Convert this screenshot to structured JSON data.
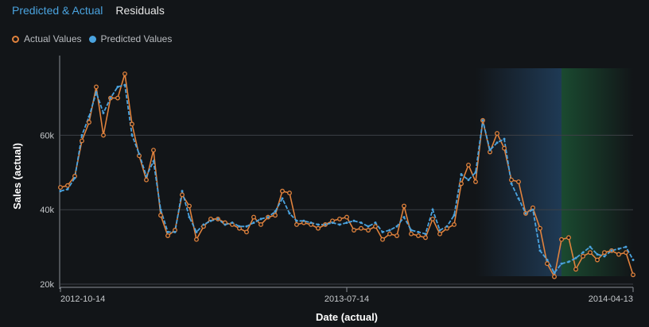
{
  "tabs": [
    {
      "label": "Predicted & Actual",
      "active": true
    },
    {
      "label": "Residuals",
      "active": false
    }
  ],
  "legend": {
    "actual_label": "Actual Values",
    "predicted_label": "Predicted Values"
  },
  "colors": {
    "actual": "#e0823d",
    "predicted": "#4aa3df",
    "active_tab": "#4aa3df",
    "background": "#121518",
    "grid": "#3c4046",
    "backtest_band": "#1f3a55",
    "holdout_band": "#1a4a30"
  },
  "chart_data": {
    "type": "line",
    "xlabel": "Date (actual)",
    "ylabel": "Sales (actual)",
    "x_ticks": [
      "2012-10-14",
      "2013-07-14",
      "2014-04-13"
    ],
    "y_ticks": [
      "20k",
      "40k",
      "60k"
    ],
    "ylim": [
      20000,
      78000
    ],
    "x_index_range": [
      0,
      80
    ],
    "grid": "horizontal",
    "highlight_regions": [
      {
        "name": "backtest",
        "from_index": 58,
        "to_index": 70
      },
      {
        "name": "holdout",
        "from_index": 70,
        "to_index": 80
      }
    ],
    "series": [
      {
        "name": "Actual Values",
        "values": [
          46000,
          46500,
          49000,
          58500,
          63500,
          73000,
          60000,
          70000,
          70000,
          76500,
          63000,
          54500,
          48000,
          56000,
          38500,
          33000,
          34500,
          44000,
          41000,
          32000,
          35500,
          37500,
          37500,
          36500,
          36000,
          35000,
          34000,
          38000,
          36000,
          38000,
          38500,
          45000,
          44500,
          36000,
          36500,
          36000,
          35000,
          36000,
          37000,
          37500,
          38000,
          34500,
          35000,
          34500,
          35500,
          32000,
          33500,
          33000,
          41000,
          33500,
          33000,
          32500,
          37500,
          33500,
          35000,
          36000,
          47000,
          52000,
          47500,
          64000,
          55500,
          60500,
          56500,
          48000,
          47500,
          39000,
          40500,
          35000,
          25500,
          22000,
          32000,
          32500,
          24000,
          27500,
          28500,
          26500,
          28500,
          29000,
          28000,
          28500,
          22500
        ],
        "values_note": "sampled approx. daily points read from chart"
      },
      {
        "name": "Predicted Values",
        "values": [
          45000,
          45500,
          48500,
          60000,
          65000,
          71500,
          66000,
          70000,
          73000,
          73500,
          60000,
          55000,
          49000,
          53000,
          40000,
          34000,
          34000,
          45000,
          38000,
          34000,
          36000,
          37000,
          37500,
          36000,
          36500,
          35500,
          35500,
          36500,
          37500,
          38000,
          39500,
          43000,
          39000,
          37000,
          37000,
          36500,
          36000,
          36000,
          36500,
          36000,
          36500,
          37000,
          36500,
          35500,
          36500,
          34000,
          34500,
          35500,
          38000,
          34500,
          34000,
          33500,
          40000,
          34500,
          35500,
          38500,
          49500,
          48000,
          50000,
          64000,
          56000,
          58000,
          59000,
          47000,
          43000,
          39000,
          40000,
          29000,
          26500,
          23000,
          25500,
          26000,
          27000,
          28500,
          30000,
          28000,
          27500,
          29000,
          29500,
          30000,
          26500
        ]
      }
    ]
  }
}
